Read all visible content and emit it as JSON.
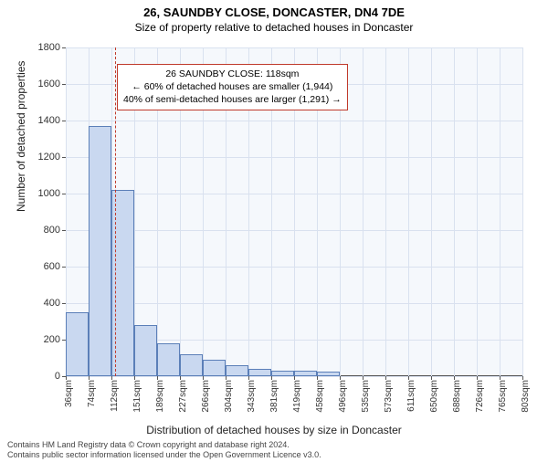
{
  "title_line1": "26, SAUNDBY CLOSE, DONCASTER, DN4 7DE",
  "title_line2": "Size of property relative to detached houses in Doncaster",
  "y_axis_label": "Number of detached properties",
  "x_axis_label": "Distribution of detached houses by size in Doncaster",
  "chart": {
    "type": "histogram",
    "ylim": [
      0,
      1800
    ],
    "ytick_step": 200,
    "yticks": [
      0,
      200,
      400,
      600,
      800,
      1000,
      1200,
      1400,
      1600,
      1800
    ],
    "xticks": [
      "36sqm",
      "74sqm",
      "112sqm",
      "151sqm",
      "189sqm",
      "227sqm",
      "266sqm",
      "304sqm",
      "343sqm",
      "381sqm",
      "419sqm",
      "458sqm",
      "496sqm",
      "535sqm",
      "573sqm",
      "611sqm",
      "650sqm",
      "688sqm",
      "726sqm",
      "765sqm",
      "803sqm"
    ],
    "bars": [
      350,
      1370,
      1020,
      280,
      180,
      120,
      90,
      60,
      40,
      30,
      30,
      25,
      0,
      0,
      0,
      0,
      0,
      0,
      0,
      0
    ],
    "bar_fill": "#c9d8f0",
    "bar_stroke": "#5b7fb8",
    "plot_bg": "#f5f8fc",
    "grid_color": "#d9e1ef",
    "axis_color": "#555555",
    "tick_fontsize": 10,
    "label_fontsize": 12
  },
  "marker": {
    "x_label": "112sqm",
    "line_color": "#c0392b"
  },
  "annotation": {
    "line1": "26 SAUNDBY CLOSE: 118sqm",
    "line2": "← 60% of detached houses are smaller (1,944)",
    "line3": "40% of semi-detached houses are larger (1,291) →",
    "border_color": "#c0392b"
  },
  "footer_line1": "Contains HM Land Registry data © Crown copyright and database right 2024.",
  "footer_line2": "Contains public sector information licensed under the Open Government Licence v3.0."
}
